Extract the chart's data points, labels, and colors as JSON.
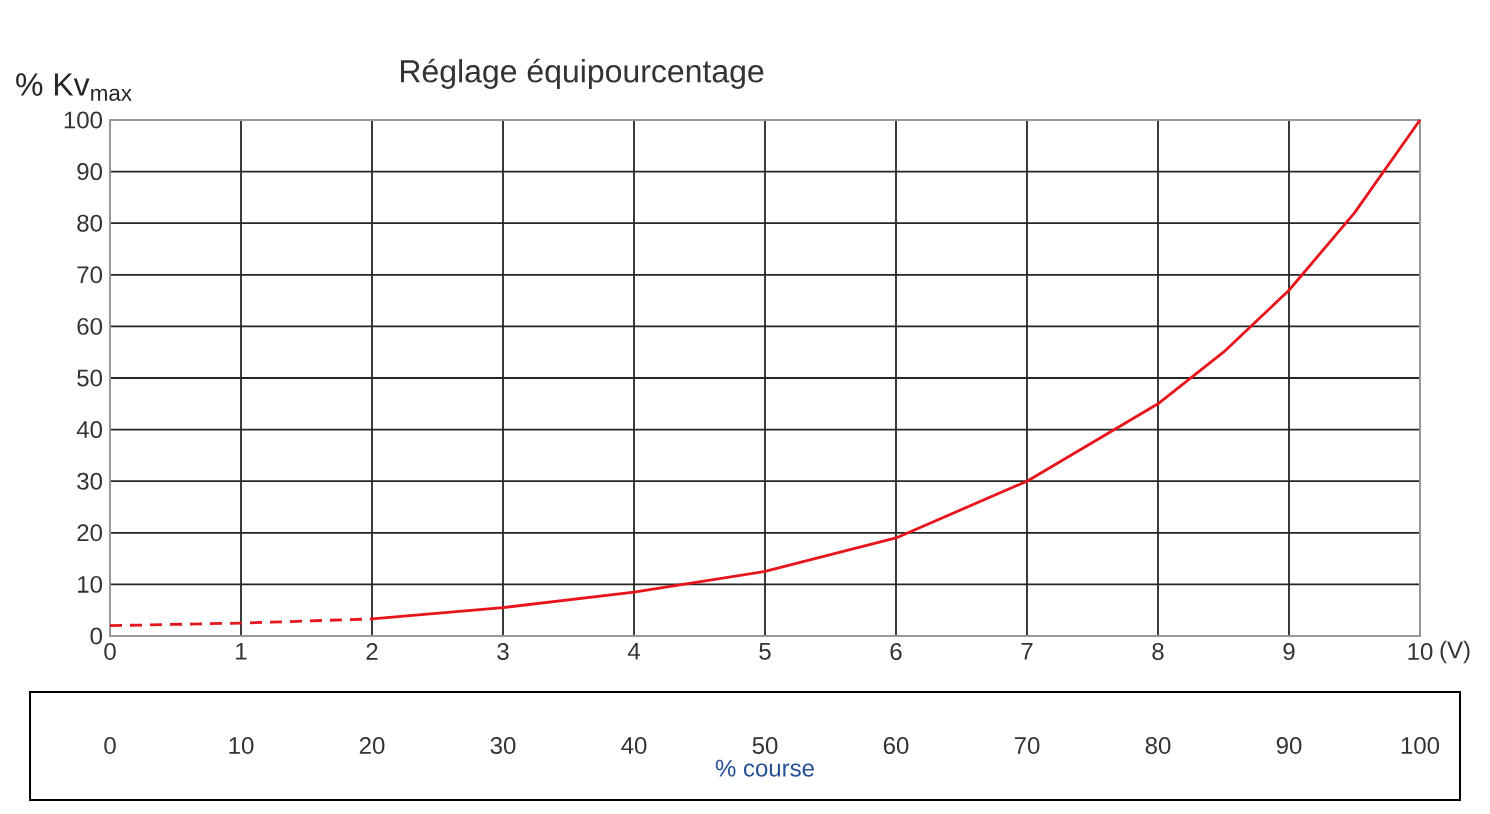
{
  "chart_data": {
    "type": "line",
    "title": "Réglage équipourcentage",
    "ylabel": "% Kv$_{max}$",
    "xlabel": "(V)",
    "x2label": "% course",
    "series": [
      {
        "color": "#e8141b",
        "line_style": "dashed",
        "x": [
          0,
          1,
          2
        ],
        "values": [
          2,
          2.5,
          3.3
        ]
      },
      {
        "color": "#e8141b",
        "line_style": "solid",
        "x": [
          2,
          3,
          4,
          5,
          6,
          7,
          8,
          8.5,
          9,
          9.5,
          10
        ],
        "values": [
          3.3,
          5.5,
          8.5,
          12.5,
          19,
          30,
          45,
          55,
          67,
          82,
          100
        ]
      }
    ],
    "xlim": [
      0,
      10
    ],
    "xticks": [
      0,
      1,
      2,
      3,
      4,
      5,
      6,
      7,
      8,
      9,
      10
    ],
    "ylim": [
      0,
      100
    ],
    "yticks": [
      0,
      10,
      20,
      30,
      40,
      50,
      60,
      70,
      80,
      90,
      100
    ],
    "x2lim": [
      0,
      100
    ],
    "x2ticks": [
      0,
      10,
      20,
      30,
      40,
      50,
      60,
      70,
      80,
      90,
      100
    ],
    "grid": true
  }
}
